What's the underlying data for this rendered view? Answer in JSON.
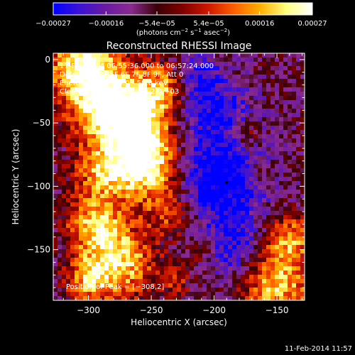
{
  "chart_data": {
    "type": "heatmap",
    "title": "Reconstructed RHESSI Image",
    "xlabel": "Heliocentric X (arcsec)",
    "ylabel": "Heliocentric Y (arcsec)",
    "xlim": [
      -328,
      -128
    ],
    "ylim": [
      -190,
      5
    ],
    "x_ticks": [
      -300,
      -250,
      -200,
      -150
    ],
    "x_tick_labels": [
      "−300",
      "−250",
      "−200",
      "−150"
    ],
    "y_ticks": [
      0,
      -50,
      -100,
      -150
    ],
    "y_tick_labels": [
      "0",
      "−50",
      "−100",
      "−150"
    ],
    "colorbar": {
      "min": -0.00027,
      "max": 0.00027,
      "tick_values": [
        -0.00027,
        -0.00016,
        -5.4e-05,
        5.4e-05,
        0.00016,
        0.00027
      ],
      "tick_labels": [
        "−0.00027",
        "−0.00016",
        "−5.4e−05",
        "5.4e−05",
        "0.00016",
        "0.00027"
      ],
      "unit_prefix": "(photons cm",
      "unit_exp1": "−2",
      "unit_mid": " s",
      "unit_exp2": "−1",
      "unit_mid2": " asec",
      "unit_exp3": "−2",
      "unit_suffix": ")",
      "colors": [
        "#0000ff",
        "#3a12d8",
        "#6a1aa0",
        "#8a2a90",
        "#3a0008",
        "#800000",
        "#d01800",
        "#ff6000",
        "#ffb000",
        "#ffff80",
        "#ffffff"
      ]
    },
    "annotations": {
      "time_range": "11-Feb-2014 06:55:36.000 to 06:57:24.000",
      "detectors": "Detectors: 3F 5F 6F 7F 8F 9F, Att 0",
      "energy": "Energy Range: 25.0 - 50.0 keV",
      "method": "Clean",
      "counts": "Total counts: 3.21E+03",
      "peak": "Position of Peak = [−308,2]"
    },
    "peak_position": [
      -308,
      2
    ],
    "marker_position": [
      -190,
      -97
    ],
    "grid": false,
    "legend": "none"
  },
  "footer": {
    "timestamp": "11-Feb-2014 11:57"
  }
}
